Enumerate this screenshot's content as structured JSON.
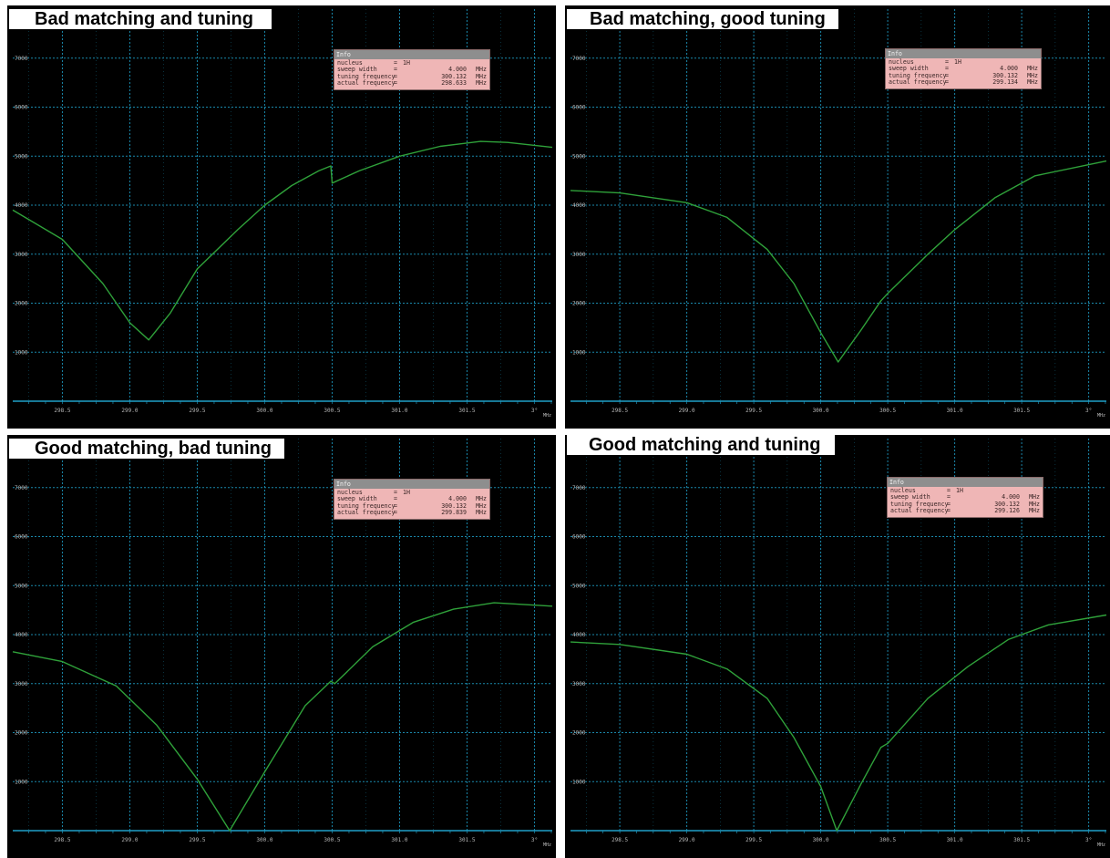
{
  "colors": {
    "background": "#000000",
    "grid": "#1f9fc8",
    "trace": "#2fa13a",
    "info_bg": "#efb6b6",
    "info_header": "#8e8e8e",
    "title_bg": "#ffffff"
  },
  "info_header": "Info",
  "x_unit": "MHz",
  "chart_data": [
    {
      "type": "line",
      "title": "Bad matching and tuning",
      "x_ticks": [
        "298.5",
        "299.0",
        "299.5",
        "300.0",
        "300.5",
        "301.0",
        "301.5",
        "3°"
      ],
      "y_ticks": [
        "7000",
        "6000",
        "5000",
        "4000",
        "3000",
        "2000",
        "1000"
      ],
      "xlim": [
        298.132,
        302.132
      ],
      "ylim": [
        0,
        8000
      ],
      "grid": true,
      "info": {
        "nucleus": "1H",
        "sweep_width": "4.000",
        "tuning_frequency": "300.132",
        "actual_frequency": "298.633"
      },
      "x": [
        298.132,
        298.5,
        298.8,
        299.0,
        299.14,
        299.3,
        299.5,
        299.8,
        300.0,
        300.2,
        300.4,
        300.49,
        300.5,
        300.7,
        301.0,
        301.3,
        301.6,
        301.8,
        302.132
      ],
      "y": [
        3900,
        3300,
        2400,
        1600,
        1250,
        1800,
        2700,
        3500,
        4000,
        4400,
        4700,
        4800,
        4450,
        4700,
        5000,
        5200,
        5300,
        5280,
        5180
      ]
    },
    {
      "type": "line",
      "title": "Bad matching, good tuning",
      "x_ticks": [
        "298.5",
        "299.0",
        "299.5",
        "300.0",
        "300.5",
        "301.0",
        "301.5",
        "3°"
      ],
      "y_ticks": [
        "7000",
        "6000",
        "5000",
        "4000",
        "3000",
        "2000",
        "1000"
      ],
      "xlim": [
        298.132,
        302.132
      ],
      "ylim": [
        0,
        8000
      ],
      "grid": true,
      "info": {
        "nucleus": "1H",
        "sweep_width": "4.000",
        "tuning_frequency": "300.132",
        "actual_frequency": "299.134"
      },
      "x": [
        298.132,
        298.5,
        299.0,
        299.3,
        299.6,
        299.8,
        300.0,
        300.13,
        300.3,
        300.45,
        300.5,
        300.8,
        301.0,
        301.3,
        301.6,
        302.132
      ],
      "y": [
        4300,
        4250,
        4050,
        3750,
        3100,
        2400,
        1400,
        800,
        1450,
        2050,
        2200,
        3000,
        3500,
        4150,
        4600,
        4900
      ]
    },
    {
      "type": "line",
      "title": "Good matching, bad tuning",
      "x_ticks": [
        "298.5",
        "299.0",
        "299.5",
        "300.0",
        "300.5",
        "301.0",
        "301.5",
        "3°"
      ],
      "y_ticks": [
        "7000",
        "6000",
        "5000",
        "4000",
        "3000",
        "2000",
        "1000"
      ],
      "xlim": [
        298.132,
        302.132
      ],
      "ylim": [
        0,
        8000
      ],
      "grid": true,
      "info": {
        "nucleus": "1H",
        "sweep_width": "4.000",
        "tuning_frequency": "300.132",
        "actual_frequency": "299.839"
      },
      "x": [
        298.132,
        298.5,
        298.9,
        299.2,
        299.5,
        299.74,
        300.0,
        300.3,
        300.49,
        300.52,
        300.8,
        301.1,
        301.4,
        301.7,
        302.132
      ],
      "y": [
        3650,
        3450,
        2950,
        2150,
        1050,
        0,
        1200,
        2550,
        3050,
        3000,
        3750,
        4250,
        4520,
        4650,
        4580
      ]
    },
    {
      "type": "line",
      "title": "Good matching and tuning",
      "x_ticks": [
        "298.5",
        "299.0",
        "299.5",
        "300.0",
        "300.5",
        "301.0",
        "301.5",
        "3°"
      ],
      "y_ticks": [
        "7000",
        "6000",
        "5000",
        "4000",
        "3000",
        "2000",
        "1000"
      ],
      "xlim": [
        298.132,
        302.132
      ],
      "ylim": [
        0,
        8000
      ],
      "grid": true,
      "info": {
        "nucleus": "1H",
        "sweep_width": "4.000",
        "tuning_frequency": "300.132",
        "actual_frequency": "299.126"
      },
      "x": [
        298.132,
        298.5,
        299.0,
        299.3,
        299.6,
        299.8,
        300.0,
        300.12,
        300.3,
        300.45,
        300.5,
        300.8,
        301.1,
        301.4,
        301.7,
        302.132
      ],
      "y": [
        3850,
        3800,
        3600,
        3300,
        2700,
        1900,
        900,
        0,
        950,
        1700,
        1780,
        2700,
        3350,
        3900,
        4200,
        4400
      ]
    }
  ]
}
